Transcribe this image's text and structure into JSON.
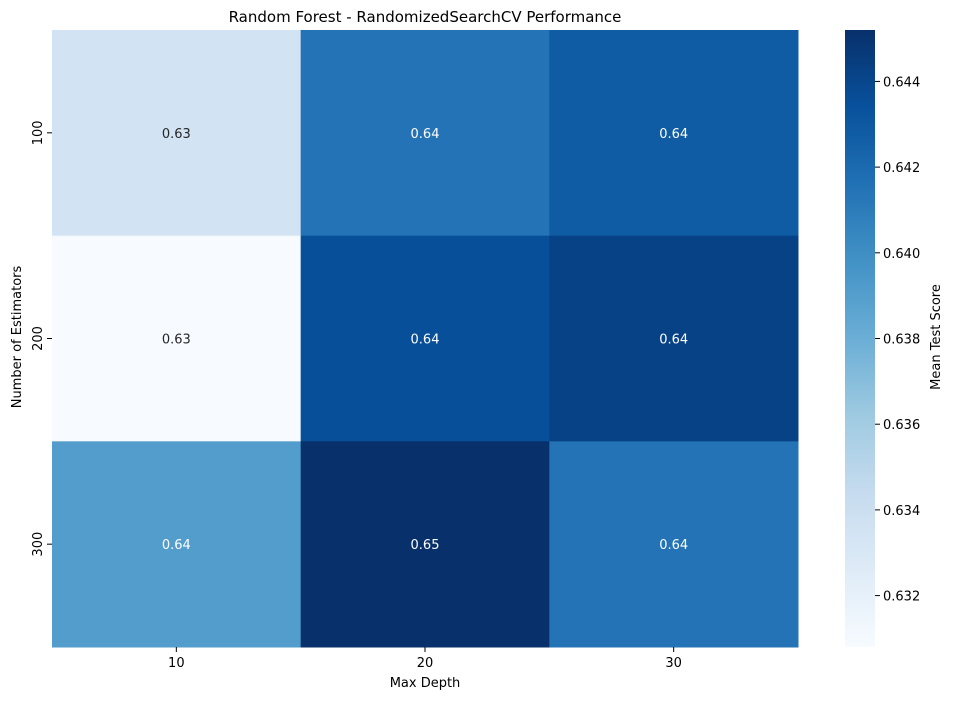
{
  "chart_data": {
    "type": "heatmap",
    "title": "Random Forest - RandomizedSearchCV Performance",
    "xlabel": "Max Depth",
    "ylabel": "Number of Estimators",
    "x_categories": [
      "10",
      "20",
      "30"
    ],
    "y_categories": [
      "100",
      "200",
      "300"
    ],
    "values": [
      [
        0.6335,
        0.6415,
        0.6428
      ],
      [
        0.6308,
        0.6435,
        0.6442
      ],
      [
        0.6391,
        0.6452,
        0.6415
      ]
    ],
    "cell_labels": [
      [
        "0.63",
        "0.64",
        "0.64"
      ],
      [
        "0.63",
        "0.64",
        "0.64"
      ],
      [
        "0.64",
        "0.65",
        "0.64"
      ]
    ],
    "colormap": "Blues",
    "colormap_stops": [
      "#f7fbff",
      "#deebf7",
      "#c6dbef",
      "#9ecae1",
      "#6baed6",
      "#4292c6",
      "#2171b5",
      "#08519c",
      "#08306b"
    ],
    "colorbar": {
      "label": "Mean Test Score",
      "vmin": 0.6308,
      "vmax": 0.6452,
      "ticks": [
        0.632,
        0.634,
        0.636,
        0.638,
        0.64,
        0.642,
        0.644
      ],
      "tick_labels": [
        "0.632",
        "0.634",
        "0.636",
        "0.638",
        "0.640",
        "0.642",
        "0.644"
      ]
    }
  }
}
